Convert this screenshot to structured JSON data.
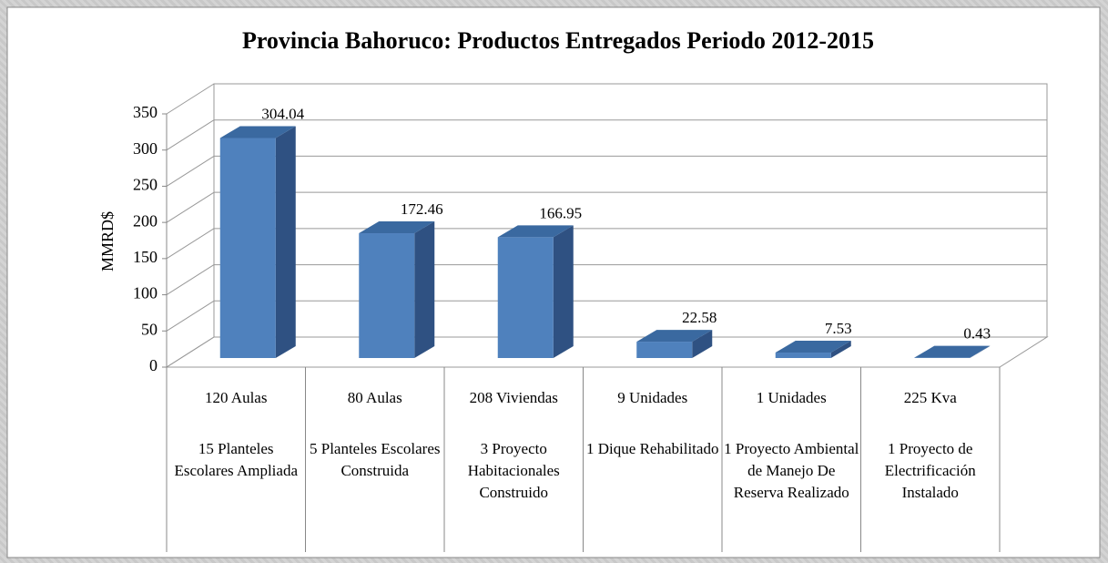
{
  "chart_data": {
    "type": "bar3d",
    "title": "Provincia Bahoruco: Productos Entregados Periodo 2012-2015",
    "y_label": "MMRD$",
    "categories": [
      "120 Aulas",
      "80 Aulas",
      "208 Viviendas",
      "9 Unidades",
      "1 Unidades",
      "225 Kva"
    ],
    "descriptions": [
      "15 Planteles Escolares Ampliada",
      "5 Planteles Escolares Construida",
      "3 Proyecto Habitacionales Construido",
      "1 Dique Rehabilitado",
      "1 Proyecto Ambiental de Manejo De Reserva Realizado",
      "1 Proyecto de Electrificación Instalado"
    ],
    "values": [
      304.04,
      172.46,
      166.95,
      22.58,
      7.53,
      0.43
    ],
    "color": "#4f81bd",
    "ylim": [
      0,
      350
    ],
    "yticks": [
      0,
      50,
      100,
      150,
      200,
      250,
      300,
      350
    ],
    "grid": true
  }
}
